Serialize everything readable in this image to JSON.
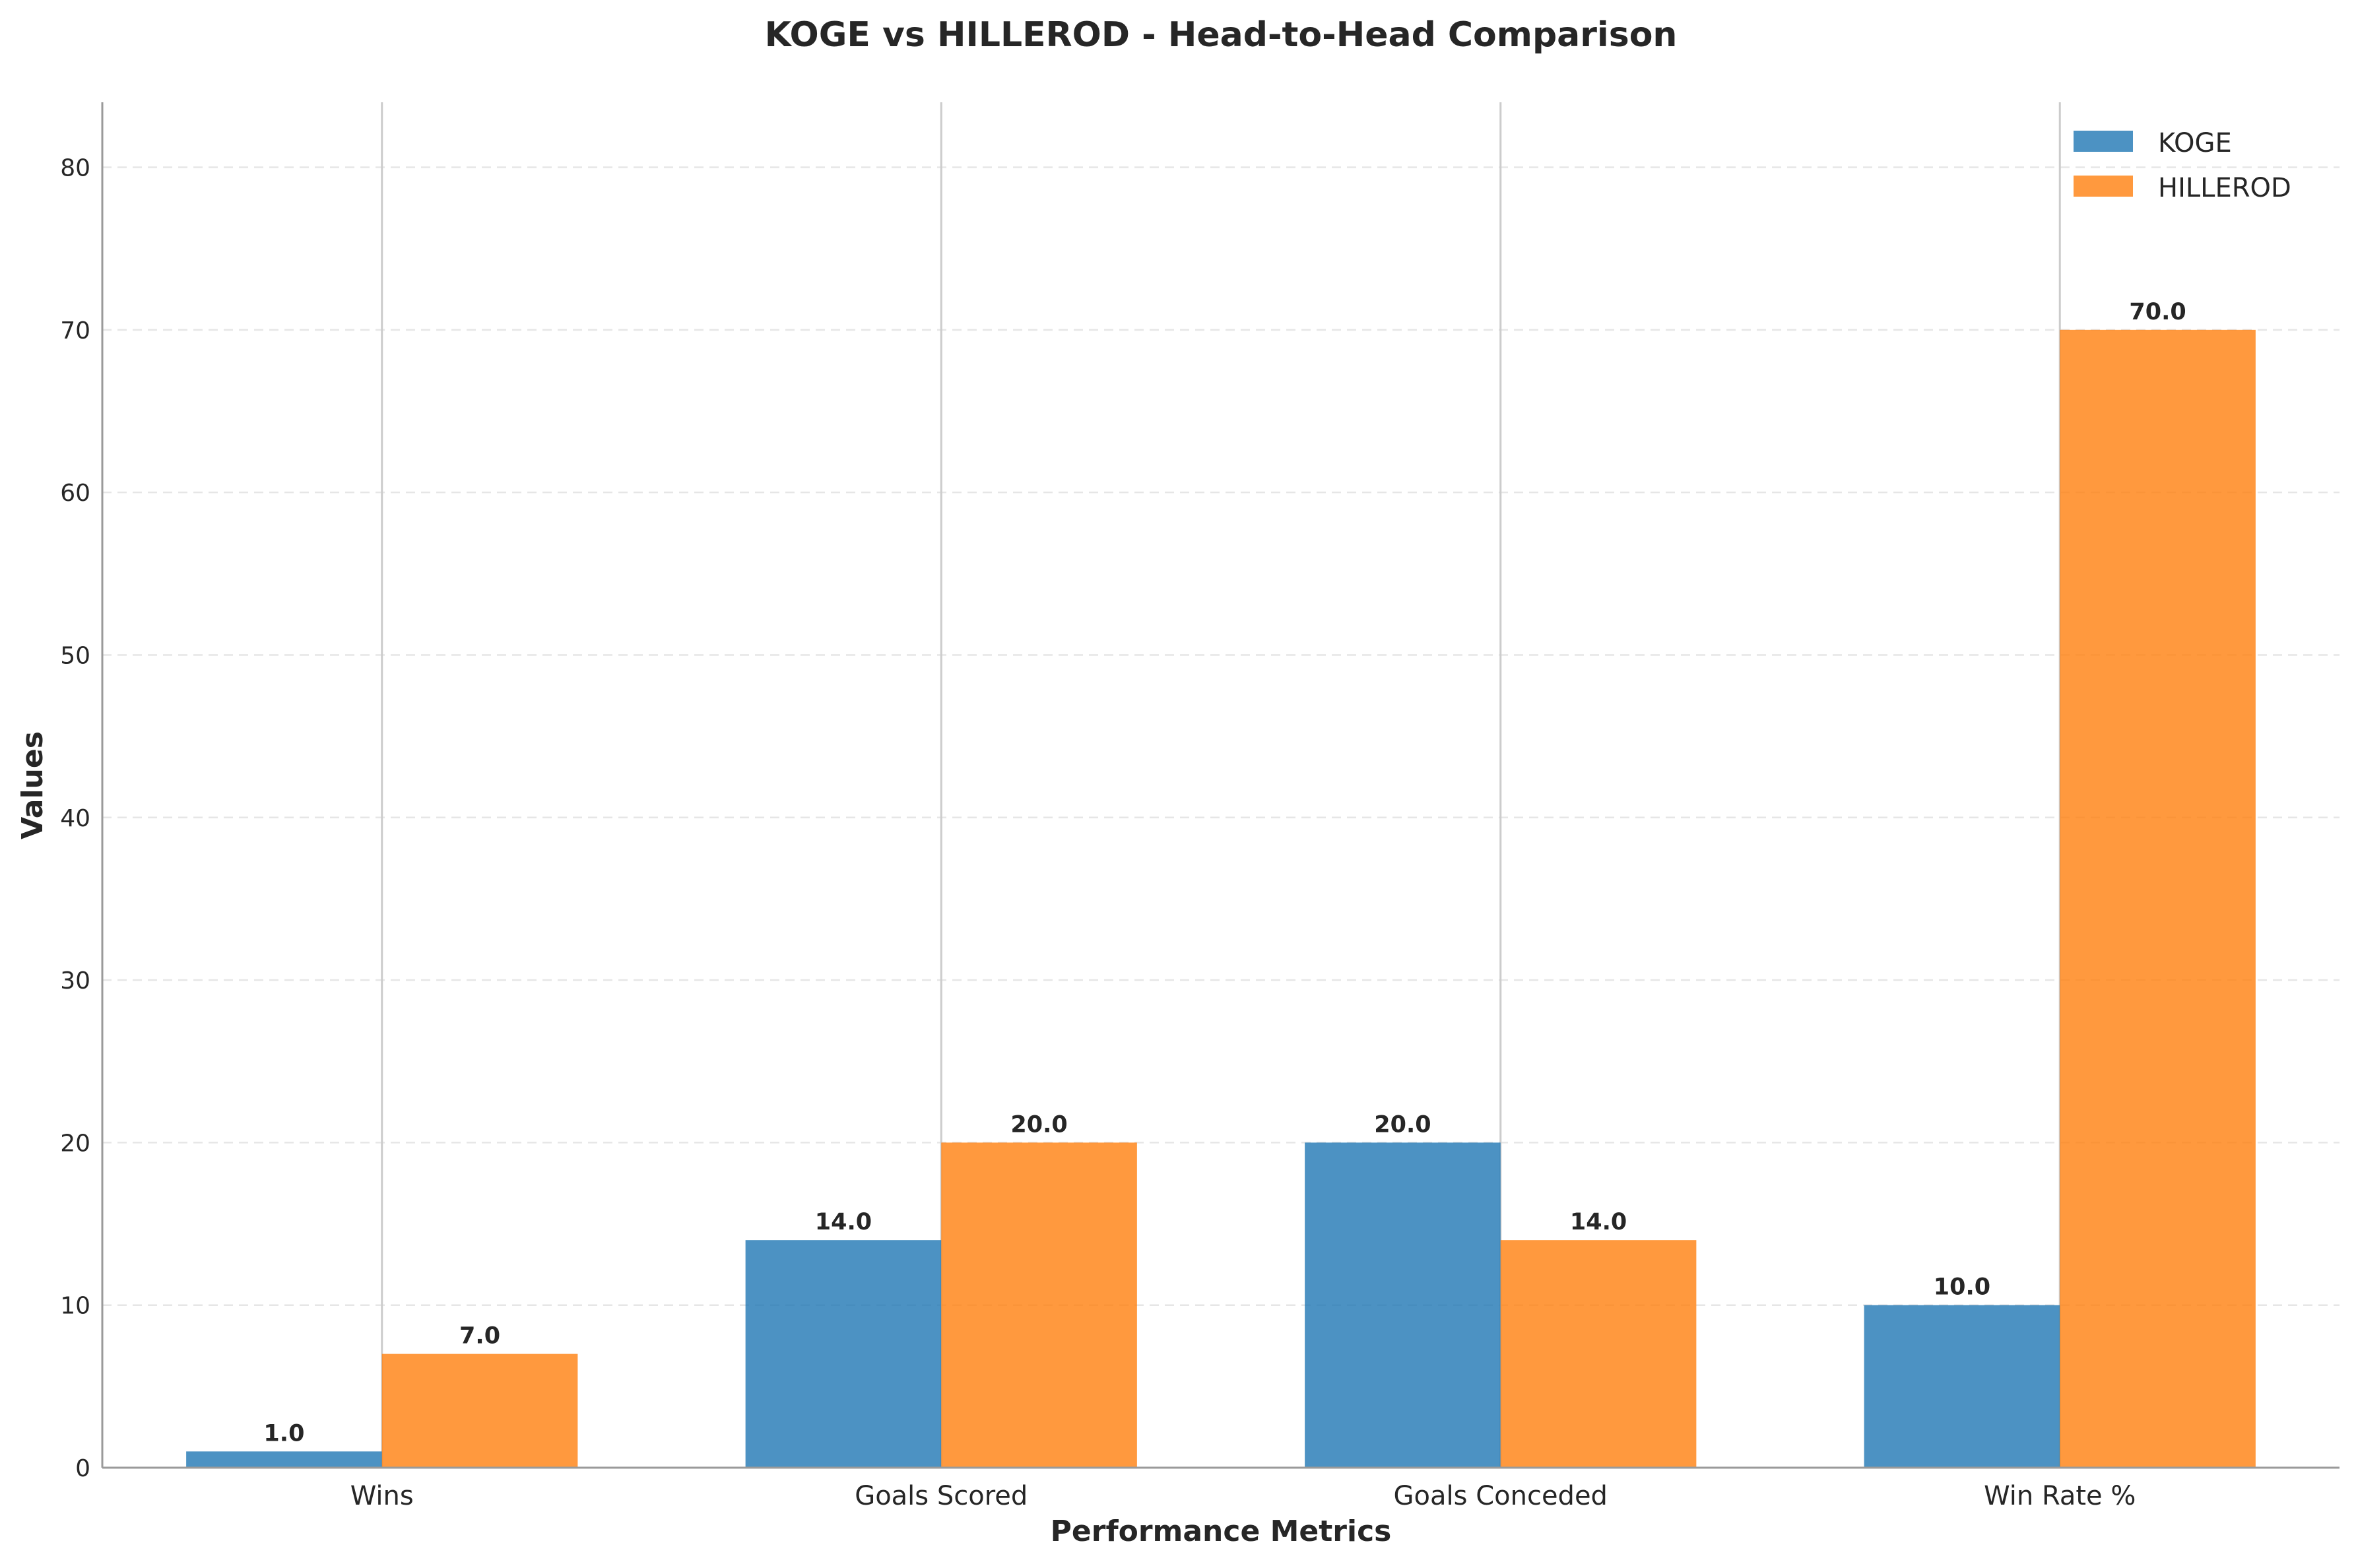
{
  "chart_data": {
    "type": "bar",
    "title": "KOGE vs HILLEROD - Head-to-Head Comparison",
    "xlabel": "Performance Metrics",
    "ylabel": "Values",
    "categories": [
      "Wins",
      "Goals Scored",
      "Goals Conceded",
      "Win Rate %"
    ],
    "series": [
      {
        "name": "KOGE",
        "values": [
          1.0,
          14.0,
          20.0,
          10.0
        ],
        "color": "#1f77b4",
        "labels": [
          "1.0",
          "14.0",
          "20.0",
          "10.0"
        ]
      },
      {
        "name": "HILLEROD",
        "values": [
          7.0,
          20.0,
          14.0,
          70.0
        ],
        "color": "#ff7f0e",
        "labels": [
          "7.0",
          "20.0",
          "14.0",
          "70.0"
        ]
      }
    ],
    "ylim": [
      0,
      84
    ],
    "yticks": [
      0,
      10,
      20,
      30,
      40,
      50,
      60,
      70,
      80
    ],
    "ytick_labels": [
      "0",
      "10",
      "20",
      "30",
      "40",
      "50",
      "60",
      "70",
      "80"
    ],
    "grid": true,
    "legend_position": "top-right"
  }
}
